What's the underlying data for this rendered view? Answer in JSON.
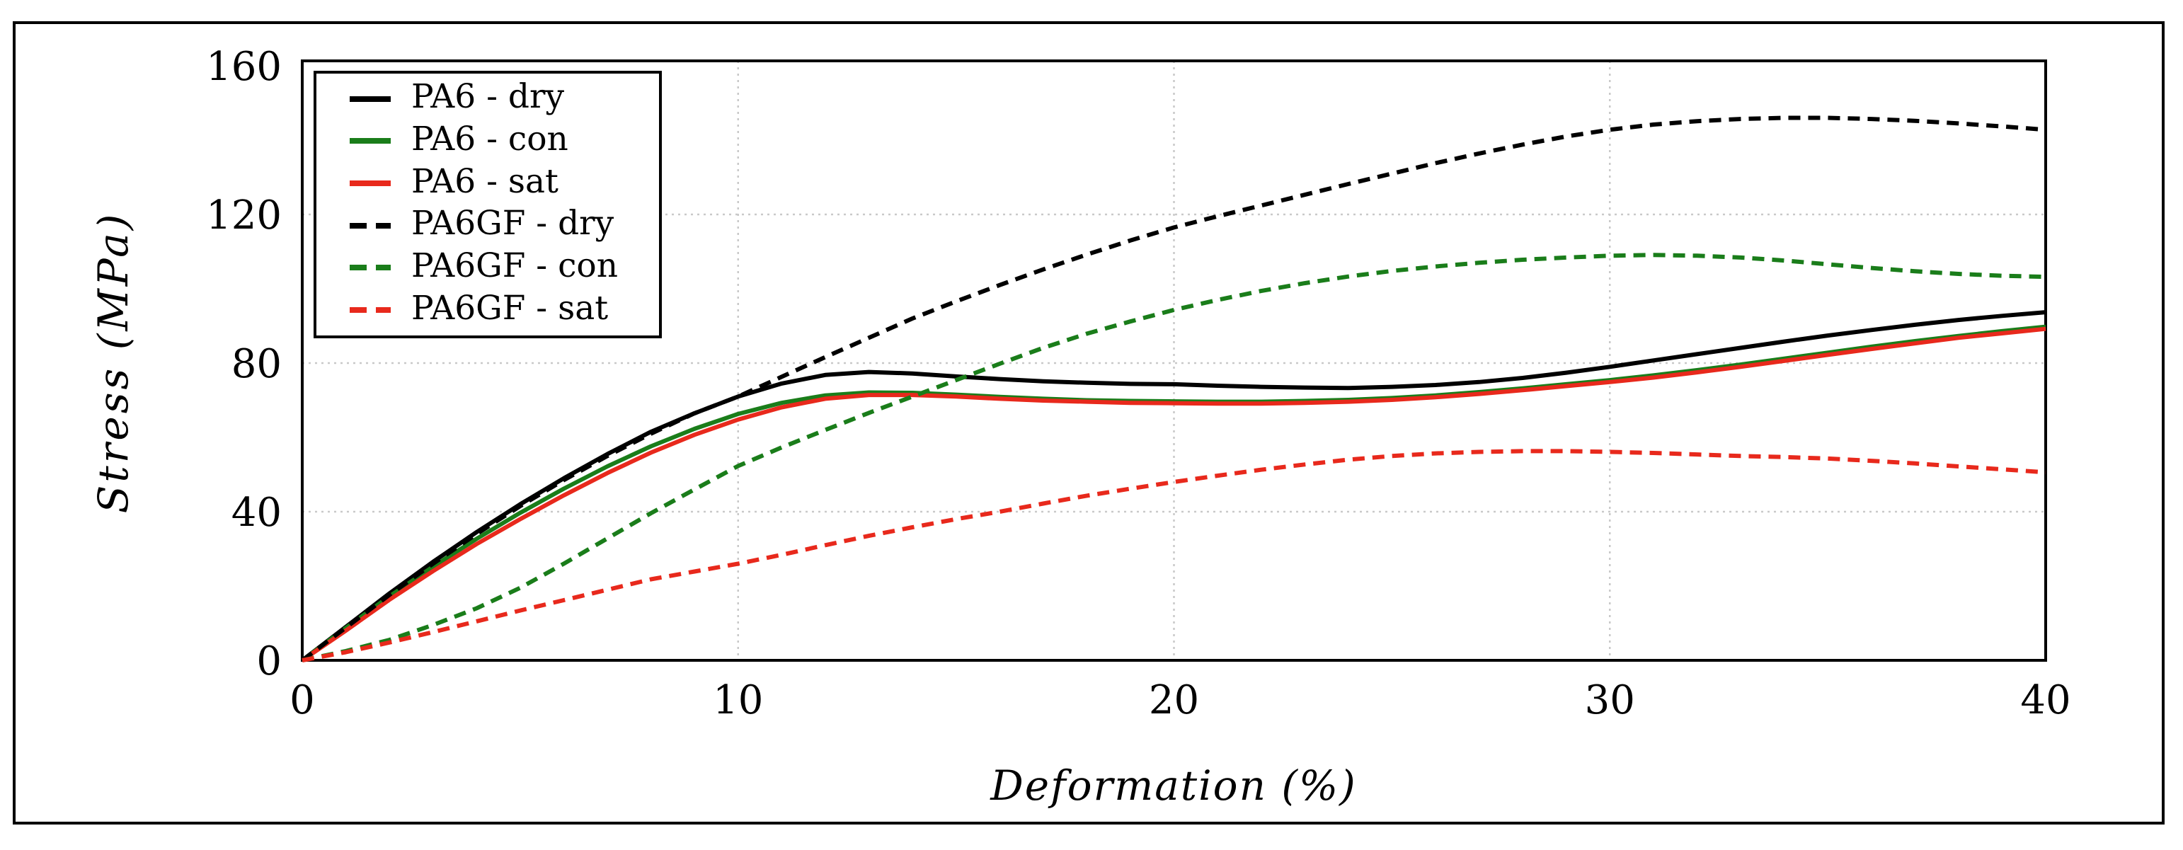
{
  "figure": {
    "x_axis_title": "Deformation (%)",
    "y_axis_title": "Stress (MPa)"
  },
  "chart_data": {
    "type": "line",
    "title": "",
    "xlabel": "Deformation (%)",
    "ylabel": "Stress (MPa)",
    "xlim": [
      0,
      40
    ],
    "ylim": [
      0,
      160
    ],
    "x_ticks": [
      0,
      10,
      20,
      30,
      40
    ],
    "y_ticks": [
      0,
      40,
      80,
      120,
      160
    ],
    "grid": true,
    "grid_color": "#c9c9c9",
    "legend_position": "upper-left",
    "x": [
      0,
      1,
      2,
      3,
      4,
      5,
      6,
      7,
      8,
      9,
      10,
      11,
      12,
      13,
      14,
      15,
      16,
      17,
      18,
      19,
      20,
      21,
      22,
      23,
      24,
      25,
      26,
      27,
      28,
      29,
      30,
      31,
      32,
      33,
      34,
      35,
      36,
      37,
      38,
      39,
      40
    ],
    "series": [
      {
        "name": "PA6 - dry",
        "color": "#000000",
        "dash": "solid",
        "values": [
          0,
          9,
          18,
          26.5,
          34.5,
          42,
          49,
          55.5,
          61.5,
          66.5,
          71,
          74.5,
          76.8,
          77.6,
          77.2,
          76.4,
          75.7,
          75.1,
          74.7,
          74.4,
          74.3,
          73.9,
          73.6,
          73.4,
          73.3,
          73.6,
          74.1,
          74.9,
          76,
          77.4,
          79,
          80.7,
          82.4,
          84.1,
          85.8,
          87.4,
          88.9,
          90.3,
          91.6,
          92.7,
          93.7
        ]
      },
      {
        "name": "PA6 - con",
        "color": "#1a7d1a",
        "dash": "solid",
        "values": [
          0,
          8.7,
          17.2,
          25.2,
          32.7,
          39.7,
          46.2,
          52.2,
          57.6,
          62.3,
          66.3,
          69.3,
          71.3,
          72.1,
          72,
          71.5,
          70.9,
          70.4,
          70,
          69.8,
          69.7,
          69.6,
          69.6,
          69.8,
          70.1,
          70.6,
          71.3,
          72.2,
          73.2,
          74.3,
          75.4,
          76.7,
          78.1,
          79.6,
          81.2,
          82.8,
          84.4,
          85.9,
          87.3,
          88.6,
          89.8
        ]
      },
      {
        "name": "PA6 - sat",
        "color": "#e8291c",
        "dash": "solid",
        "values": [
          0,
          8,
          16.3,
          24,
          31.3,
          38,
          44.4,
          50.4,
          55.9,
          60.7,
          64.8,
          68.1,
          70.4,
          71.4,
          71.4,
          71,
          70.4,
          69.9,
          69.6,
          69.3,
          69.2,
          69.1,
          69.1,
          69.3,
          69.6,
          70.1,
          70.8,
          71.7,
          72.7,
          73.8,
          74.9,
          76.1,
          77.5,
          79,
          80.6,
          82.2,
          83.8,
          85.3,
          86.8,
          88,
          89.2
        ]
      },
      {
        "name": "PA6GF - dry",
        "color": "#000000",
        "dash": "dashed",
        "values": [
          0,
          8.8,
          17.6,
          26,
          34,
          41.5,
          48.5,
          55,
          61,
          66.5,
          71,
          76.3,
          81.6,
          86.8,
          92,
          96.6,
          101,
          105.2,
          109.2,
          113,
          116.5,
          119.5,
          122.4,
          125.3,
          128.2,
          131,
          133.8,
          136.4,
          138.8,
          141,
          142.8,
          144.2,
          145.1,
          145.7,
          146,
          146,
          145.7,
          145.2,
          144.5,
          143.7,
          142.8
        ]
      },
      {
        "name": "PA6GF - con",
        "color": "#1a7d1a",
        "dash": "dashed",
        "values": [
          0,
          2.5,
          5.5,
          9.5,
          14,
          19.5,
          26,
          32.8,
          39.6,
          46,
          52.3,
          57.3,
          62,
          66.6,
          71,
          75.4,
          79.8,
          84.1,
          87.9,
          91.2,
          94.3,
          97,
          99.4,
          101.5,
          103.3,
          104.8,
          106,
          107,
          107.8,
          108.4,
          108.9,
          109.1,
          108.9,
          108.4,
          107.6,
          106.6,
          105.6,
          104.7,
          104,
          103.5,
          103.2
        ]
      },
      {
        "name": "PA6GF - sat",
        "color": "#e8291c",
        "dash": "dashed",
        "values": [
          0,
          2.2,
          4.8,
          7.6,
          10.5,
          13.4,
          16.2,
          19,
          21.8,
          23.9,
          26,
          28.4,
          31,
          33.5,
          35.8,
          38,
          40,
          42.2,
          44.3,
          46.2,
          48,
          49.7,
          51.3,
          52.7,
          54,
          55,
          55.7,
          56.1,
          56.3,
          56.3,
          56.1,
          55.8,
          55.4,
          55,
          54.7,
          54.3,
          53.7,
          53,
          52.2,
          51.4,
          50.6
        ]
      }
    ]
  }
}
